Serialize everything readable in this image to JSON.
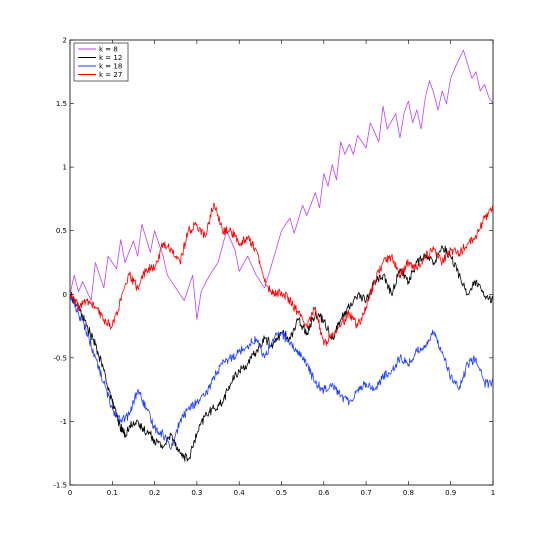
{
  "chart_data": {
    "type": "line",
    "title": "",
    "xlabel": "",
    "ylabel": "",
    "xlim": [
      0,
      1
    ],
    "ylim": [
      -1.5,
      2
    ],
    "grid": false,
    "legend_position": "top-left",
    "x_ticks": [
      0,
      0.1,
      0.2,
      0.3,
      0.4,
      0.5,
      0.6,
      0.7,
      0.8,
      0.9,
      1
    ],
    "x_tick_labels": [
      "0",
      "0.1",
      "0.2",
      "0.3",
      "0.4",
      "0.5",
      "0.6",
      "0.7",
      "0.8",
      "0.9",
      "1"
    ],
    "y_ticks": [
      -1.5,
      -1,
      -0.5,
      0,
      0.5,
      1,
      1.5,
      2
    ],
    "y_tick_labels": [
      "-1.5",
      "-1",
      "-0.5",
      "0",
      "0.5",
      "1",
      "1.5",
      "2"
    ],
    "series": [
      {
        "name": "k = 8",
        "color": "#bf40ff",
        "x": [
          0,
          0.01,
          0.02,
          0.03,
          0.05,
          0.06,
          0.08,
          0.09,
          0.11,
          0.12,
          0.13,
          0.15,
          0.16,
          0.17,
          0.19,
          0.2,
          0.22,
          0.23,
          0.25,
          0.27,
          0.29,
          0.3,
          0.31,
          0.33,
          0.35,
          0.37,
          0.39,
          0.4,
          0.42,
          0.44,
          0.46,
          0.48,
          0.5,
          0.52,
          0.53,
          0.55,
          0.56,
          0.58,
          0.59,
          0.6,
          0.61,
          0.62,
          0.63,
          0.64,
          0.65,
          0.66,
          0.67,
          0.68,
          0.7,
          0.71,
          0.73,
          0.74,
          0.75,
          0.77,
          0.78,
          0.79,
          0.8,
          0.81,
          0.82,
          0.83,
          0.84,
          0.85,
          0.86,
          0.87,
          0.88,
          0.89,
          0.9,
          0.91,
          0.92,
          0.93,
          0.95,
          0.96,
          0.97,
          0.98,
          0.99,
          1
        ],
        "y": [
          0,
          0.15,
          0.02,
          0.1,
          -0.05,
          0.25,
          0.05,
          0.3,
          0.2,
          0.43,
          0.25,
          0.42,
          0.3,
          0.55,
          0.33,
          0.5,
          0.3,
          0.15,
          0.05,
          -0.05,
          0.15,
          -0.2,
          0.02,
          0.15,
          0.25,
          0.5,
          0.35,
          0.18,
          0.3,
          0.15,
          0.05,
          0.27,
          0.5,
          0.6,
          0.48,
          0.7,
          0.62,
          0.8,
          0.68,
          0.95,
          0.85,
          1.02,
          0.9,
          1.2,
          1.1,
          1.18,
          1.1,
          1.25,
          1.15,
          1.35,
          1.2,
          1.48,
          1.3,
          1.42,
          1.23,
          1.43,
          1.52,
          1.35,
          1.45,
          1.3,
          1.55,
          1.68,
          1.58,
          1.45,
          1.6,
          1.5,
          1.7,
          1.78,
          1.85,
          1.92,
          1.7,
          1.75,
          1.6,
          1.65,
          1.55,
          1.5
        ]
      },
      {
        "name": "k = 12",
        "color": "#000000",
        "x": [
          0,
          0.02,
          0.04,
          0.06,
          0.08,
          0.1,
          0.11,
          0.12,
          0.13,
          0.15,
          0.17,
          0.19,
          0.2,
          0.22,
          0.24,
          0.26,
          0.28,
          0.3,
          0.32,
          0.34,
          0.36,
          0.38,
          0.4,
          0.42,
          0.44,
          0.46,
          0.48,
          0.5,
          0.52,
          0.54,
          0.56,
          0.58,
          0.6,
          0.62,
          0.64,
          0.66,
          0.68,
          0.7,
          0.72,
          0.74,
          0.76,
          0.78,
          0.8,
          0.82,
          0.84,
          0.86,
          0.88,
          0.9,
          0.92,
          0.94,
          0.96,
          0.98,
          1
        ],
        "y": [
          0,
          -0.1,
          -0.25,
          -0.4,
          -0.6,
          -0.85,
          -0.95,
          -1.05,
          -1.1,
          -1.0,
          -1.05,
          -1.1,
          -1.15,
          -1.2,
          -1.1,
          -1.25,
          -1.3,
          -1.1,
          -0.95,
          -0.9,
          -0.85,
          -0.7,
          -0.6,
          -0.55,
          -0.45,
          -0.35,
          -0.4,
          -0.3,
          -0.35,
          -0.2,
          -0.3,
          -0.15,
          -0.2,
          -0.35,
          -0.2,
          -0.1,
          0.0,
          -0.05,
          0.1,
          0.15,
          0.0,
          0.2,
          0.1,
          0.25,
          0.3,
          0.25,
          0.38,
          0.3,
          0.15,
          0.0,
          0.1,
          -0.02,
          -0.05
        ]
      },
      {
        "name": "k = 18",
        "color": "#2040ff",
        "x": [
          0,
          0.02,
          0.04,
          0.06,
          0.08,
          0.1,
          0.12,
          0.14,
          0.16,
          0.18,
          0.2,
          0.22,
          0.24,
          0.26,
          0.28,
          0.3,
          0.32,
          0.34,
          0.36,
          0.38,
          0.4,
          0.42,
          0.44,
          0.46,
          0.48,
          0.5,
          0.52,
          0.54,
          0.56,
          0.58,
          0.6,
          0.62,
          0.64,
          0.66,
          0.68,
          0.7,
          0.72,
          0.74,
          0.76,
          0.78,
          0.8,
          0.82,
          0.84,
          0.86,
          0.88,
          0.9,
          0.92,
          0.94,
          0.96,
          0.98,
          1
        ],
        "y": [
          0,
          -0.15,
          -0.3,
          -0.5,
          -0.7,
          -0.9,
          -1.0,
          -0.95,
          -0.75,
          -0.9,
          -1.05,
          -1.1,
          -1.2,
          -1.0,
          -0.9,
          -0.85,
          -0.8,
          -0.65,
          -0.55,
          -0.5,
          -0.45,
          -0.4,
          -0.35,
          -0.5,
          -0.35,
          -0.3,
          -0.4,
          -0.45,
          -0.55,
          -0.7,
          -0.75,
          -0.7,
          -0.8,
          -0.85,
          -0.75,
          -0.7,
          -0.75,
          -0.65,
          -0.6,
          -0.5,
          -0.55,
          -0.45,
          -0.4,
          -0.3,
          -0.45,
          -0.65,
          -0.75,
          -0.55,
          -0.5,
          -0.7,
          -0.7
        ]
      },
      {
        "name": "k = 27",
        "color": "#ff0000",
        "x": [
          0,
          0.02,
          0.04,
          0.06,
          0.08,
          0.1,
          0.12,
          0.14,
          0.16,
          0.18,
          0.2,
          0.22,
          0.24,
          0.26,
          0.28,
          0.3,
          0.32,
          0.34,
          0.36,
          0.38,
          0.4,
          0.42,
          0.44,
          0.46,
          0.48,
          0.5,
          0.52,
          0.54,
          0.56,
          0.58,
          0.6,
          0.62,
          0.64,
          0.66,
          0.68,
          0.7,
          0.72,
          0.74,
          0.76,
          0.78,
          0.8,
          0.82,
          0.84,
          0.86,
          0.88,
          0.9,
          0.92,
          0.94,
          0.96,
          0.98,
          1
        ],
        "y": [
          0,
          -0.1,
          -0.05,
          -0.1,
          -0.2,
          -0.25,
          -0.05,
          0.15,
          0.05,
          0.2,
          0.2,
          0.4,
          0.35,
          0.25,
          0.5,
          0.55,
          0.45,
          0.72,
          0.5,
          0.5,
          0.4,
          0.45,
          0.35,
          0.1,
          0.0,
          0.02,
          -0.05,
          -0.15,
          -0.25,
          -0.1,
          -0.4,
          -0.3,
          -0.25,
          -0.15,
          -0.25,
          -0.1,
          0.1,
          0.25,
          0.3,
          0.15,
          0.25,
          0.2,
          0.3,
          0.35,
          0.25,
          0.35,
          0.32,
          0.4,
          0.45,
          0.6,
          0.68
        ]
      }
    ]
  }
}
